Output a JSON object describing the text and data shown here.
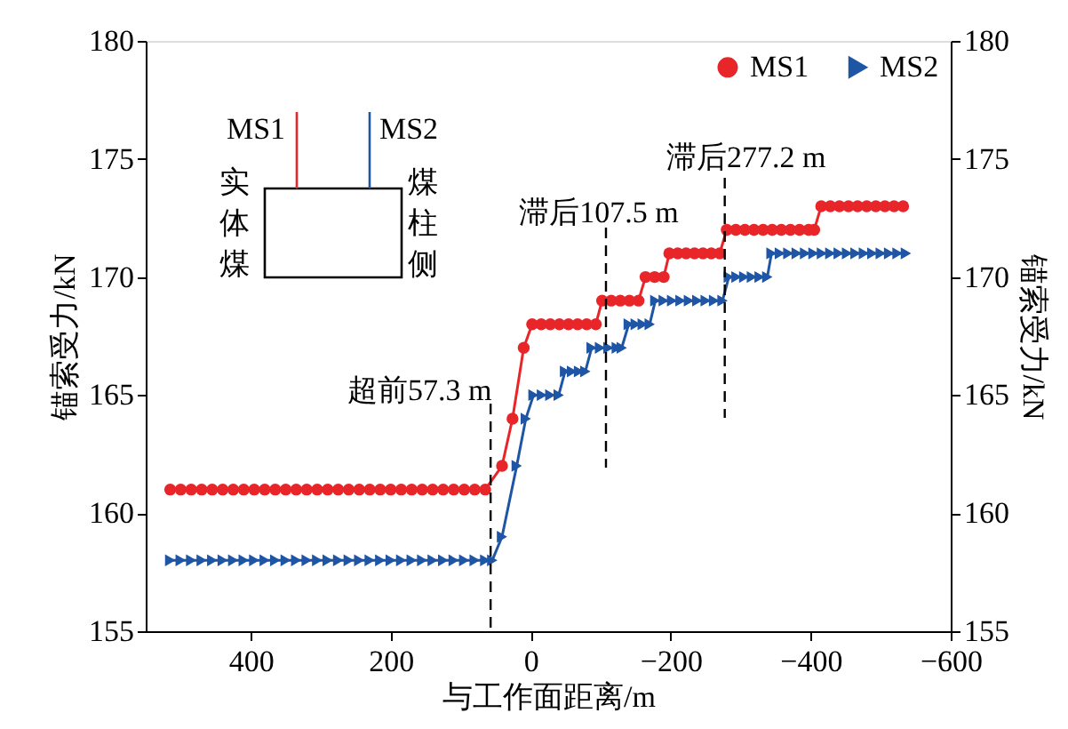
{
  "chart_data": {
    "type": "line",
    "xlabel": "与工作面距离/m",
    "ylabel": "锚索受力/kN",
    "y2label": "锚索受力/kN",
    "xlim": [
      550,
      -600
    ],
    "xticks": [
      400,
      200,
      0,
      -200,
      -400,
      -600
    ],
    "ylim": [
      155,
      180
    ],
    "yticks": [
      155,
      160,
      165,
      170,
      175,
      180
    ],
    "y2lim": [
      155,
      180
    ],
    "y2ticks": [
      155,
      160,
      165,
      170,
      175,
      180
    ],
    "grid": false,
    "legend": "top right",
    "line_style": "solid",
    "series": [
      {
        "name": "MS1",
        "color": "#e8262a",
        "marker": "circle",
        "x": [
          515,
          500,
          485,
          470,
          455,
          440,
          425,
          410,
          395,
          380,
          365,
          350,
          335,
          320,
          305,
          290,
          275,
          260,
          245,
          230,
          215,
          200,
          185,
          170,
          155,
          140,
          125,
          110,
          95,
          80,
          65,
          41,
          26,
          10,
          -2,
          -15,
          -28,
          -41,
          -54,
          -67,
          -80,
          -93,
          -102,
          -115,
          -128,
          -141,
          -154,
          -164,
          -177,
          -190,
          -198,
          -210,
          -222,
          -234,
          -246,
          -258,
          -270,
          -280,
          -293,
          -306,
          -319,
          -332,
          -345,
          -358,
          -371,
          -384,
          -397,
          -405,
          -415,
          -428,
          -441,
          -454,
          -467,
          -480,
          -493,
          -506,
          -519,
          -532
        ],
        "values": [
          161,
          161,
          161,
          161,
          161,
          161,
          161,
          161,
          161,
          161,
          161,
          161,
          161,
          161,
          161,
          161,
          161,
          161,
          161,
          161,
          161,
          161,
          161,
          161,
          161,
          161,
          161,
          161,
          161,
          161,
          161,
          162,
          164,
          167,
          168,
          168,
          168,
          168,
          168,
          168,
          168,
          168,
          169,
          169,
          169,
          169,
          169,
          170,
          170,
          170,
          171,
          171,
          171,
          171,
          171,
          171,
          171,
          172,
          172,
          172,
          172,
          172,
          172,
          172,
          172,
          172,
          172,
          172,
          173,
          173,
          173,
          173,
          173,
          173,
          173,
          173,
          173,
          173
        ]
      },
      {
        "name": "MS2",
        "color": "#1f55a5",
        "marker": "triangle",
        "x": [
          515,
          500,
          485,
          470,
          455,
          440,
          425,
          410,
          395,
          380,
          365,
          350,
          335,
          320,
          305,
          290,
          275,
          260,
          245,
          230,
          215,
          200,
          185,
          170,
          155,
          140,
          125,
          110,
          95,
          80,
          65,
          55,
          41,
          20,
          7,
          -4,
          -16,
          -28,
          -40,
          -49,
          -59,
          -69,
          -78,
          -87,
          -99,
          -111,
          -123,
          -130,
          -140,
          -150,
          -160,
          -170,
          -178,
          -190,
          -202,
          -214,
          -226,
          -238,
          -250,
          -262,
          -274,
          -283,
          -294,
          -305,
          -316,
          -327,
          -338,
          -344,
          -356,
          -368,
          -380,
          -392,
          -404,
          -416,
          -428,
          -440,
          -452,
          -464,
          -476,
          -488,
          -500,
          -512,
          -524,
          -536
        ],
        "values": [
          158,
          158,
          158,
          158,
          158,
          158,
          158,
          158,
          158,
          158,
          158,
          158,
          158,
          158,
          158,
          158,
          158,
          158,
          158,
          158,
          158,
          158,
          158,
          158,
          158,
          158,
          158,
          158,
          158,
          158,
          158,
          158,
          159,
          162,
          164,
          165,
          165,
          165,
          165,
          166,
          166,
          166,
          166,
          167,
          167,
          167,
          167,
          167,
          168,
          168,
          168,
          168,
          169,
          169,
          169,
          169,
          169,
          169,
          169,
          169,
          169,
          170,
          170,
          170,
          170,
          170,
          170,
          171,
          171,
          171,
          171,
          171,
          171,
          171,
          171,
          171,
          171,
          171,
          171,
          171,
          171,
          171,
          171,
          171
        ]
      }
    ],
    "ref_lines": [
      {
        "axis": "x",
        "value": 57.3,
        "label": "超前57.3 m",
        "color": "#000000",
        "line_style": "dashed"
      },
      {
        "axis": "x",
        "value": -107.5,
        "label": "滞后107.5 m",
        "color": "#000000",
        "line_style": "dashed"
      },
      {
        "axis": "x",
        "value": -277.2,
        "label": "滞后277.2 m",
        "color": "#000000",
        "line_style": "dashed"
      }
    ],
    "annotations": [
      "MS1",
      "MS2",
      "实体煤",
      "煤柱侧"
    ]
  }
}
